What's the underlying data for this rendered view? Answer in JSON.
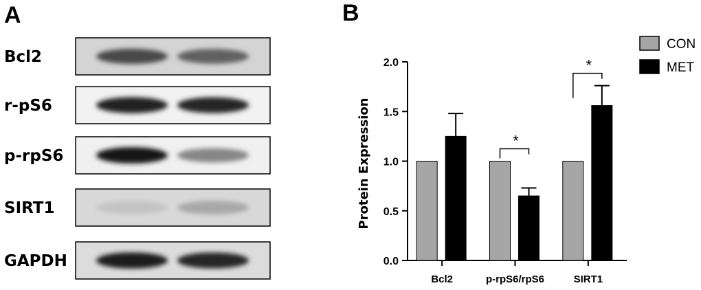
{
  "panels": {
    "left_letter": "A",
    "right_letter": "B"
  },
  "blot": {
    "rows": [
      {
        "label": "Bcl2",
        "band_intensity": [
          0.72,
          0.62
        ],
        "bg": "#d4d4d4"
      },
      {
        "label": "r-pS6",
        "band_intensity": [
          0.9,
          0.88
        ],
        "bg": "#f2f2f2"
      },
      {
        "label": "p-rpS6",
        "band_intensity": [
          0.95,
          0.45
        ],
        "bg": "#f0f0f0"
      },
      {
        "label": "SIRT1",
        "band_intensity": [
          0.18,
          0.3
        ],
        "bg": "#d8d8d8"
      },
      {
        "label": "GAPDH",
        "band_intensity": [
          0.92,
          0.88
        ],
        "bg": "#dcdcdc"
      }
    ]
  },
  "chart_data": {
    "type": "bar",
    "title": "",
    "xlabel": "",
    "ylabel": "Protein  Expression",
    "ylim": [
      0,
      2.0
    ],
    "yticks": [
      "0.0",
      "0.5",
      "1.0",
      "1.5",
      "2.0"
    ],
    "categories": [
      "Bcl2",
      "p-rpS6/rpS6",
      "SIRT1"
    ],
    "series": [
      {
        "name": "CON",
        "color": "#a6a6a6",
        "values": [
          1.0,
          1.0,
          1.0
        ],
        "errors": [
          0,
          0,
          0
        ]
      },
      {
        "name": "MET",
        "color": "#000000",
        "values": [
          1.25,
          0.65,
          1.56
        ],
        "errors": [
          0.23,
          0.08,
          0.2
        ]
      }
    ],
    "significance": [
      {
        "category_index": 1,
        "label": "*"
      },
      {
        "category_index": 2,
        "label": "*"
      }
    ],
    "legend_position": "top-right",
    "grid": false
  }
}
